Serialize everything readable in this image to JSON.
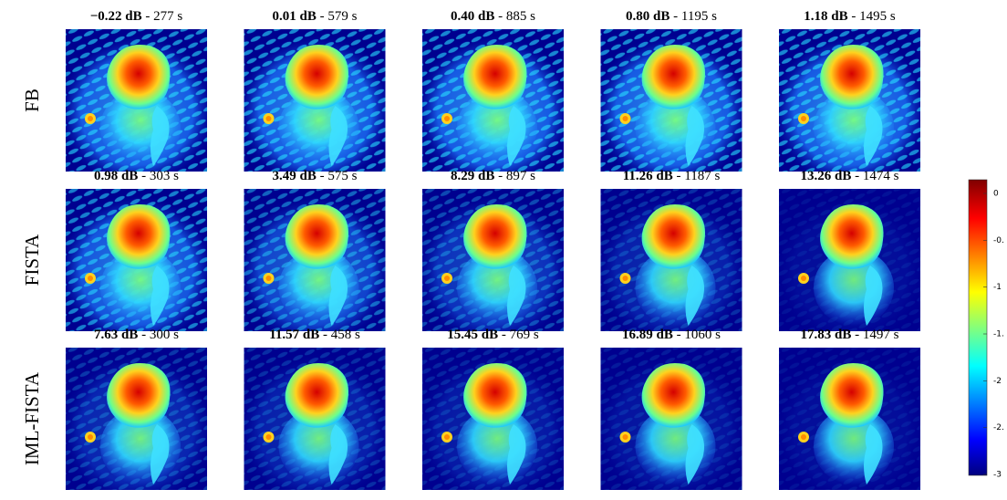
{
  "rows": [
    {
      "label": "FB",
      "panels": [
        {
          "snr": "−0.22 dB",
          "time": " - 277 s"
        },
        {
          "snr": "0.01 dB",
          "time": " - 579 s"
        },
        {
          "snr": "0.40 dB",
          "time": " - 885 s"
        },
        {
          "snr": "0.80 dB",
          "time": " - 1195 s"
        },
        {
          "snr": "1.18 dB",
          "time": " - 1495 s"
        }
      ]
    },
    {
      "label": "FISTA",
      "panels": [
        {
          "snr": "0.98 dB",
          "time": " - 303 s"
        },
        {
          "snr": "3.49 dB",
          "time": " - 575 s"
        },
        {
          "snr": "8.29 dB",
          "time": " - 897 s"
        },
        {
          "snr": "11.26 dB",
          "time": " - 1187 s"
        },
        {
          "snr": "13.26 dB",
          "time": " - 1474 s"
        }
      ]
    },
    {
      "label": "IML-FISTA",
      "panels": [
        {
          "snr": "7.63 dB",
          "time": " - 300 s"
        },
        {
          "snr": "11.57 dB",
          "time": " - 458 s"
        },
        {
          "snr": "15.45 dB",
          "time": " - 769 s"
        },
        {
          "snr": "16.89 dB",
          "time": " - 1060 s"
        },
        {
          "snr": "17.83 dB",
          "time": " - 1497 s"
        }
      ]
    }
  ],
  "colorbar": {
    "labels": [
      "0",
      "-0.",
      "-1",
      "-1.",
      "-2",
      "-2.",
      "-3"
    ]
  }
}
